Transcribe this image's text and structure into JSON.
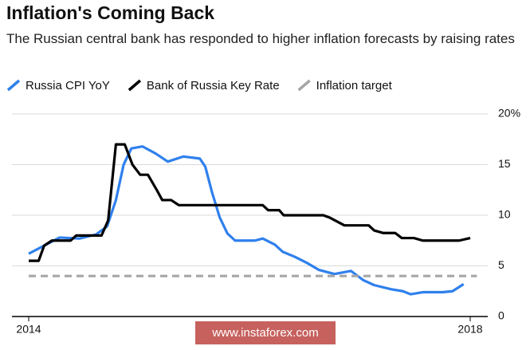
{
  "chart_data": {
    "type": "line",
    "title": "Inflation's Coming Back",
    "subtitle": "The Russian central bank has responded to higher inflation forecasts by raising rates",
    "xlim": [
      2014,
      2018
    ],
    "xticks": [
      2014,
      2018
    ],
    "ylim": [
      0,
      20
    ],
    "yticks": [
      0,
      5,
      10,
      15,
      {
        "value": 20,
        "label": "20%"
      }
    ],
    "grid": true,
    "legend": "top",
    "series": [
      {
        "name": "Russia CPI YoY",
        "color": "#2f80ed",
        "x": [
          2014.0,
          2014.14,
          2014.28,
          2014.46,
          2014.61,
          2014.71,
          2014.79,
          2014.86,
          2014.93,
          2015.03,
          2015.15,
          2015.26,
          2015.4,
          2015.55,
          2015.6,
          2015.66,
          2015.73,
          2015.8,
          2015.87,
          2016.05,
          2016.12,
          2016.23,
          2016.3,
          2016.41,
          2016.52,
          2016.63,
          2016.77,
          2016.92,
          2017.03,
          2017.13,
          2017.28,
          2017.39,
          2017.46,
          2017.57,
          2017.75,
          2017.84,
          2017.94
        ],
        "values": [
          6.2,
          7.0,
          7.8,
          7.7,
          8.1,
          8.9,
          11.5,
          15.0,
          16.6,
          16.8,
          16.1,
          15.3,
          15.8,
          15.6,
          14.8,
          12.3,
          9.8,
          8.2,
          7.5,
          7.5,
          7.7,
          7.1,
          6.4,
          5.9,
          5.3,
          4.6,
          4.2,
          4.5,
          3.6,
          3.1,
          2.7,
          2.5,
          2.2,
          2.4,
          2.4,
          2.5,
          3.2
        ]
      },
      {
        "name": "Bank of Russia Key Rate",
        "color": "#000000",
        "x": [
          2014.0,
          2014.09,
          2014.14,
          2014.21,
          2014.38,
          2014.43,
          2014.66,
          2014.72,
          2014.79,
          2014.87,
          2014.94,
          2015.01,
          2015.08,
          2015.16,
          2015.21,
          2015.29,
          2015.36,
          2016.12,
          2016.17,
          2016.27,
          2016.31,
          2016.67,
          2016.73,
          2016.86,
          2017.08,
          2017.13,
          2017.21,
          2017.32,
          2017.38,
          2017.49,
          2017.57,
          2017.9,
          2018.0
        ],
        "values": [
          5.5,
          5.5,
          7.0,
          7.5,
          7.5,
          8.0,
          8.0,
          9.5,
          17.0,
          17.0,
          15.0,
          14.0,
          14.0,
          12.5,
          11.5,
          11.5,
          11.0,
          11.0,
          10.5,
          10.5,
          10.0,
          10.0,
          9.75,
          9.0,
          9.0,
          8.5,
          8.25,
          8.25,
          7.75,
          7.75,
          7.5,
          7.5,
          7.75
        ]
      },
      {
        "name": "Inflation target",
        "color": "#a6a6a6",
        "dashed": true,
        "x": [
          2014.0,
          2018.06
        ],
        "values": [
          4,
          4
        ]
      }
    ],
    "watermark": "www.instaforex.com"
  }
}
